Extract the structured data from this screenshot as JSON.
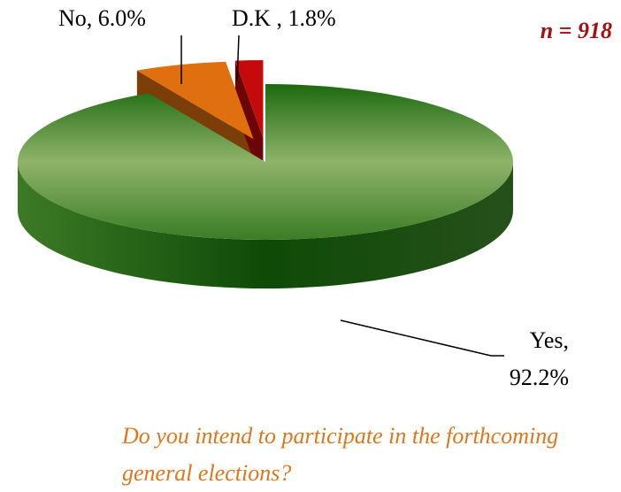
{
  "chart_data": {
    "type": "pie",
    "title": "Do you intend to participate in the forthcoming general elections?",
    "annotation": "n = 918",
    "categories": [
      "Yes",
      "No",
      "D.K"
    ],
    "values": [
      92.2,
      6.0,
      1.8
    ],
    "value_labels": [
      "Yes, 92.2%",
      "No, 6.0%",
      "D.K , 1.8%"
    ],
    "colors": [
      "#3f8a2a",
      "#e0700f",
      "#c40a0a"
    ],
    "explode": [
      false,
      true,
      true
    ]
  }
}
